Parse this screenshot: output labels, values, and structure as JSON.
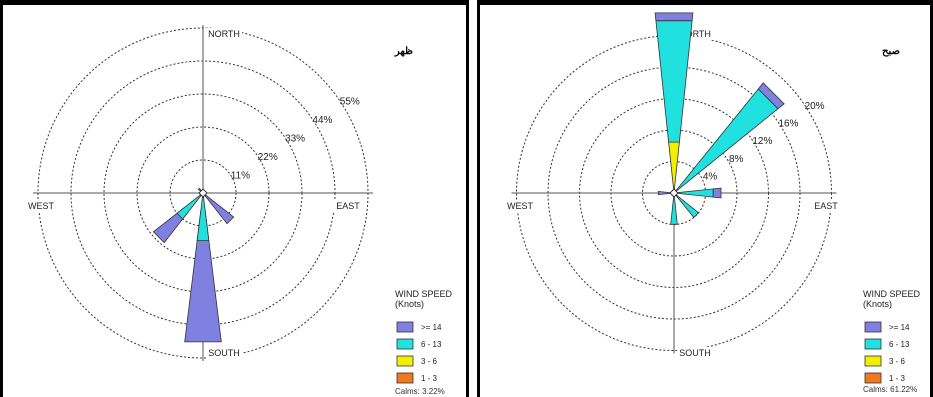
{
  "chart_data": [
    {
      "type": "wind-rose",
      "title": "ظهر",
      "directions": [
        "NORTH",
        "EAST",
        "SOUTH",
        "WEST"
      ],
      "ring_labels": [
        "11%",
        "22%",
        "33%",
        "44%",
        "55%"
      ],
      "ring_values": [
        11,
        22,
        33,
        44,
        55
      ],
      "petals": [
        {
          "direction_deg": 180,
          "segments": [
            {
              "class": ">= 14",
              "from": 6,
              "to": 50
            },
            {
              "class": "6 - 13",
              "from": 0,
              "to": 16
            }
          ]
        },
        {
          "direction_deg": 225,
          "segments": [
            {
              "class": ">= 14",
              "from": 8,
              "to": 21
            },
            {
              "class": "6 - 13",
              "from": 0,
              "to": 11
            }
          ]
        },
        {
          "direction_deg": 135,
          "segments": [
            {
              "class": ">= 14",
              "from": 0,
              "to": 13
            }
          ]
        },
        {
          "direction_deg": 315,
          "segments": [
            {
              "class": ">= 14",
              "from": 0,
              "to": 2
            }
          ]
        }
      ],
      "legend": {
        "title": "WIND SPEED (Knots)",
        "title_line1": "WIND SPEED",
        "title_line2": "(Knots)",
        "items": [
          {
            "label": ">= 14",
            "color": "#8080e0"
          },
          {
            "label": "6 - 13",
            "color": "#20e0e0"
          },
          {
            "label": "3 - 6",
            "color": "#f0f000"
          },
          {
            "label": "1 - 3",
            "color": "#f07820"
          }
        ]
      },
      "calms": "Calms: 3.22%"
    },
    {
      "type": "wind-rose",
      "title": "صبح",
      "directions": [
        "NORTH",
        "EAST",
        "SOUTH",
        "WEST"
      ],
      "ring_labels": [
        "4%",
        "8%",
        "12%",
        "16%",
        "20%"
      ],
      "ring_values": [
        4,
        8,
        12,
        16,
        20
      ],
      "petals": [
        {
          "direction_deg": 0,
          "segments": [
            {
              "class": "3 - 6",
              "from": 0,
              "to": 6.5
            },
            {
              "class": "6 - 13",
              "from": 6.5,
              "to": 22
            },
            {
              "class": ">= 14",
              "from": 22,
              "to": 23
            }
          ]
        },
        {
          "direction_deg": 45,
          "segments": [
            {
              "class": "6 - 13",
              "from": 0,
              "to": 17
            },
            {
              "class": ">= 14",
              "from": 17,
              "to": 18
            }
          ]
        },
        {
          "direction_deg": 90,
          "segments": [
            {
              "class": "6 - 13",
              "from": 0,
              "to": 5
            },
            {
              "class": ">= 14",
              "from": 5,
              "to": 6
            }
          ]
        },
        {
          "direction_deg": 135,
          "segments": [
            {
              "class": "6 - 13",
              "from": 0,
              "to": 4
            }
          ]
        },
        {
          "direction_deg": 180,
          "segments": [
            {
              "class": "6 - 13",
              "from": 0,
              "to": 4
            }
          ]
        },
        {
          "direction_deg": 270,
          "segments": [
            {
              "class": ">= 14",
              "from": 0,
              "to": 2
            }
          ]
        }
      ],
      "legend": {
        "title": "WIND SPEED (Knots)",
        "title_line1": "WIND SPEED",
        "title_line2": "(Knots)",
        "items": [
          {
            "label": ">= 14",
            "color": "#8080e0"
          },
          {
            "label": "6 - 13",
            "color": "#20e0e0"
          },
          {
            "label": "3 - 6",
            "color": "#f0f000"
          },
          {
            "label": "1 - 3",
            "color": "#f07820"
          }
        ]
      },
      "calms": "Calms: 61.22%"
    }
  ]
}
